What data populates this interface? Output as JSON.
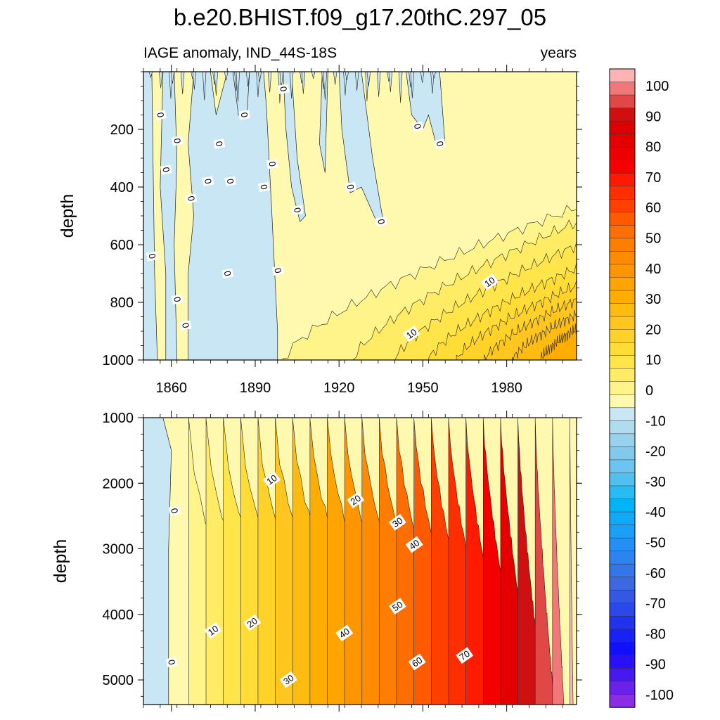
{
  "chart_data": {
    "type": "contour",
    "title": "b.e20.BHIST.f09_g17.20thC.297_05",
    "subtitle_left": "IAGE anomaly, IND_44S-18S",
    "subtitle_right": "years",
    "x_range": [
      1850,
      2005
    ],
    "x_ticks": [
      1860,
      1890,
      1920,
      1950,
      1980
    ],
    "panels": [
      {
        "name": "upper",
        "ylabel": "depth",
        "ylim": [
          0,
          1000
        ],
        "y_ticks": [
          200,
          400,
          600,
          800,
          1000
        ],
        "contour_labels": [
          {
            "text": "0",
            "x": 1900,
            "y": 60
          },
          {
            "text": "0",
            "x": 1856,
            "y": 150
          },
          {
            "text": "0",
            "x": 1886,
            "y": 150
          },
          {
            "text": "0",
            "x": 1948,
            "y": 190
          },
          {
            "text": "0",
            "x": 1862,
            "y": 240
          },
          {
            "text": "0",
            "x": 1877,
            "y": 250
          },
          {
            "text": "0",
            "x": 1956,
            "y": 250
          },
          {
            "text": "0",
            "x": 1896,
            "y": 320
          },
          {
            "text": "0",
            "x": 1858,
            "y": 340
          },
          {
            "text": "0",
            "x": 1873,
            "y": 380
          },
          {
            "text": "0",
            "x": 1881,
            "y": 380
          },
          {
            "text": "0",
            "x": 1893,
            "y": 400
          },
          {
            "text": "0",
            "x": 1924,
            "y": 400
          },
          {
            "text": "0",
            "x": 1867,
            "y": 440
          },
          {
            "text": "0",
            "x": 1905,
            "y": 480
          },
          {
            "text": "0",
            "x": 1935,
            "y": 520
          },
          {
            "text": "0",
            "x": 1853,
            "y": 640
          },
          {
            "text": "0",
            "x": 1880,
            "y": 700
          },
          {
            "text": "0",
            "x": 1898,
            "y": 690
          },
          {
            "text": "10",
            "x": 1974,
            "y": 730
          },
          {
            "text": "0",
            "x": 1862,
            "y": 790
          },
          {
            "text": "0",
            "x": 1865,
            "y": 880
          },
          {
            "text": "10",
            "x": 1946,
            "y": 910
          }
        ]
      },
      {
        "name": "lower",
        "ylabel": "depth",
        "ylim": [
          1000,
          5375
        ],
        "y_ticks": [
          1000,
          2000,
          3000,
          4000,
          5000
        ],
        "contour_labels": [
          {
            "text": "10",
            "x": 1896,
            "y": 1950
          },
          {
            "text": "0",
            "x": 1861,
            "y": 2420
          },
          {
            "text": "20",
            "x": 1926,
            "y": 2260
          },
          {
            "text": "30",
            "x": 1941,
            "y": 2600
          },
          {
            "text": "40",
            "x": 1947,
            "y": 2940
          },
          {
            "text": "50",
            "x": 1941,
            "y": 3880
          },
          {
            "text": "10",
            "x": 1875,
            "y": 4250
          },
          {
            "text": "20",
            "x": 1889,
            "y": 4130
          },
          {
            "text": "40",
            "x": 1922,
            "y": 4290
          },
          {
            "text": "0",
            "x": 1860,
            "y": 4730
          },
          {
            "text": "60",
            "x": 1948,
            "y": 4730
          },
          {
            "text": "70",
            "x": 1965,
            "y": 4630
          },
          {
            "text": "30",
            "x": 1902,
            "y": 5000
          }
        ]
      }
    ],
    "colorbar": {
      "labels": [
        "100",
        "90",
        "80",
        "70",
        "60",
        "50",
        "40",
        "30",
        "20",
        "10",
        "0",
        "-10",
        "-20",
        "-30",
        "-40",
        "-50",
        "-60",
        "-70",
        "-80",
        "-90",
        "-100"
      ],
      "colors_top_to_bottom": [
        "#ffb4b4",
        "#f07878",
        "#e04848",
        "#d01010",
        "#dc0000",
        "#e40000",
        "#ec0000",
        "#f40000",
        "#ff1a00",
        "#ff2e00",
        "#ff4000",
        "#ff5a00",
        "#ff6e00",
        "#ff7e00",
        "#ff8c00",
        "#ff9600",
        "#ffa400",
        "#ffae00",
        "#ffbc10",
        "#ffc620",
        "#ffd22a",
        "#ffdc36",
        "#ffe54a",
        "#ffec64",
        "#fff48a",
        "#fff9b0",
        "#c8e6f4",
        "#b0dcf0",
        "#98d2ec",
        "#84c8ec",
        "#6ec4f0",
        "#50c0f0",
        "#28bcf4",
        "#00b4f8",
        "#10a8f8",
        "#1aa0f8",
        "#2490f4",
        "#2c84f0",
        "#3476e8",
        "#3c68e0",
        "#3458e4",
        "#2a48e8",
        "#2034ee",
        "#1822f4",
        "#1010fa",
        "#2a10f8",
        "#4818f0",
        "#6a22ea",
        "#8a2ee6"
      ]
    }
  }
}
